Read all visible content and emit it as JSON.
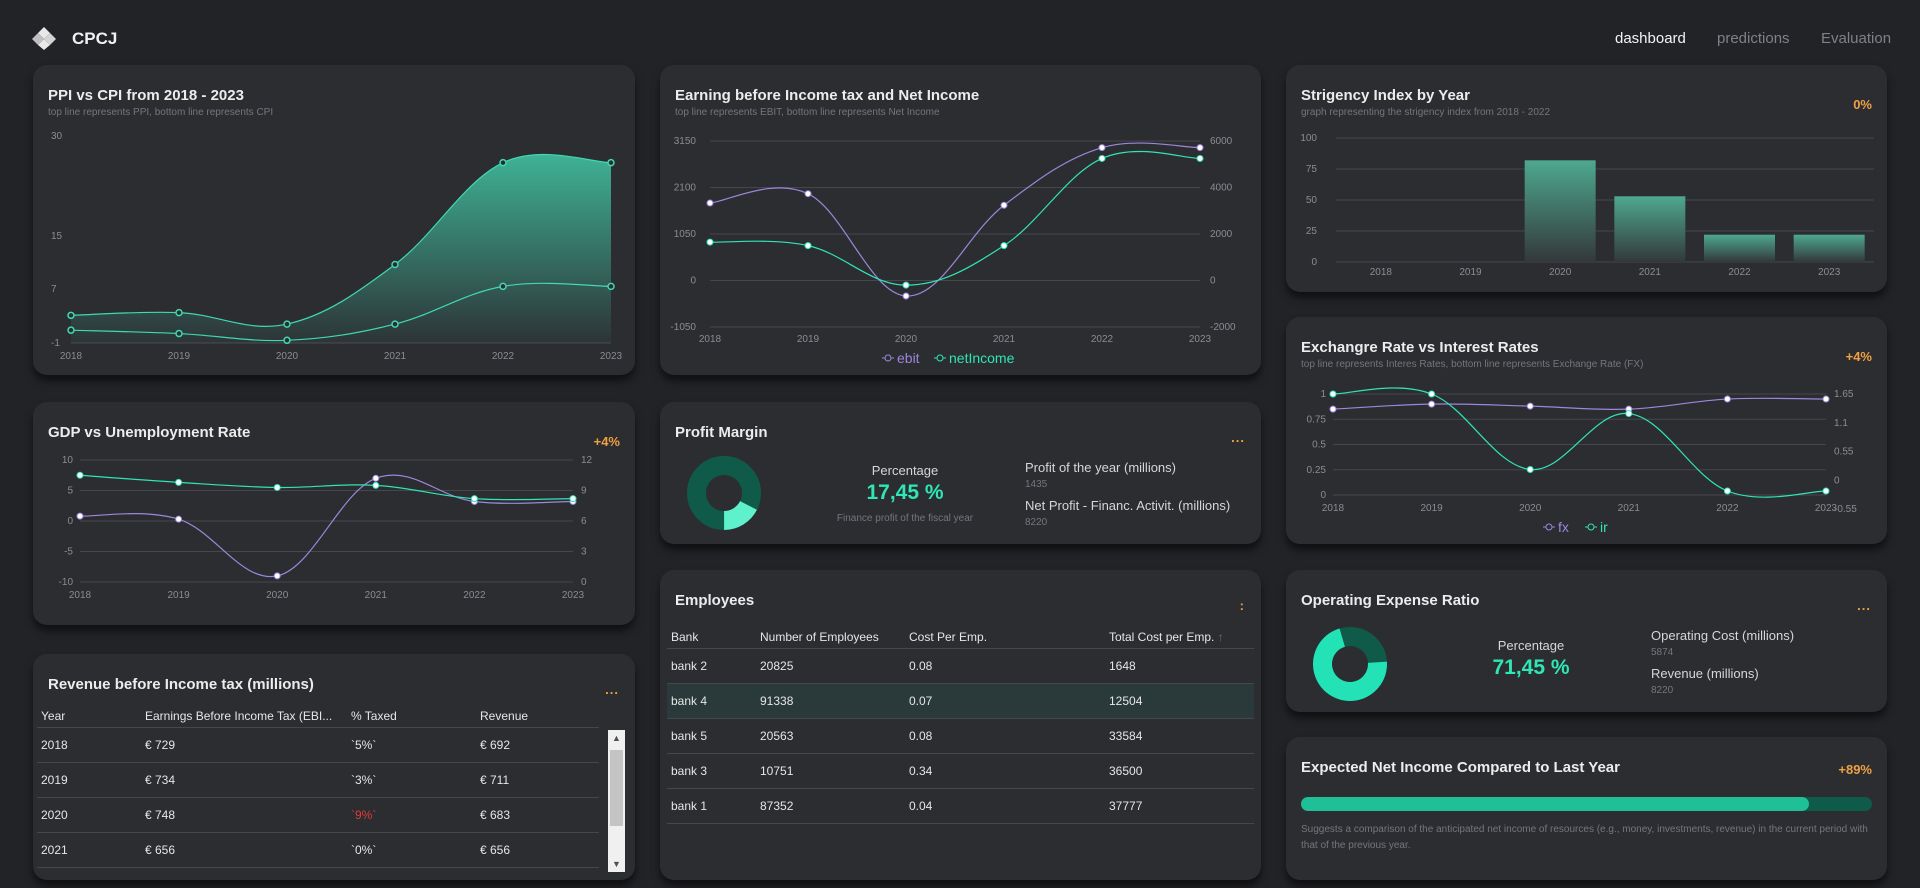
{
  "app": {
    "brand": "CPCJ"
  },
  "nav": {
    "items": [
      {
        "label": "dashboard",
        "active": true
      },
      {
        "label": "predictions",
        "active": false
      },
      {
        "label": "Evaluation",
        "active": false
      }
    ]
  },
  "colors": {
    "accent": "#2ee6b6",
    "teal": "#31c9a6",
    "purple": "#9d86dc",
    "orange": "#f0a143",
    "card": "#2c2d31",
    "background": "#222327"
  },
  "ppi_cpi": {
    "title": "PPI vs CPI from 2018 - 2023",
    "subtitle": "top line represents PPI, bottom line represents CPI",
    "chart_data": {
      "type": "area",
      "x": [
        "2018",
        "2019",
        "2020",
        "2021",
        "2022",
        "2023"
      ],
      "y_ticks": [
        "30",
        "15",
        "7",
        "-1"
      ],
      "series": [
        {
          "values": [
            3.1,
            3.5,
            1.8,
            10.7,
            26,
            26
          ]
        },
        {
          "values": [
            0.9,
            0.4,
            -0.6,
            1.8,
            7.4,
            7.4
          ]
        }
      ]
    }
  },
  "ebit": {
    "title": "Earning before Income tax and Net Income",
    "subtitle": "top line represents EBIT, bottom line represents Net Income",
    "chart_data": {
      "type": "line",
      "x": [
        "2018",
        "2019",
        "2020",
        "2021",
        "2022",
        "2023"
      ],
      "y_left_ticks": [
        "3150",
        "2100",
        "1050",
        "0",
        "-1050"
      ],
      "y_right_ticks": [
        "6000",
        "4000",
        "2000",
        "0",
        "-2000"
      ],
      "series": [
        {
          "name": "ebit",
          "values": [
            1750,
            1960,
            -350,
            1700,
            3000,
            3000
          ]
        },
        {
          "name": "netIncome",
          "values": [
            1650,
            1500,
            -200,
            1500,
            5250,
            5250
          ]
        }
      ]
    }
  },
  "stringency": {
    "title": "Strigency Index by Year",
    "subtitle": "graph representing the strigency index from 2018 - 2022",
    "badge": "0%",
    "chart_data": {
      "type": "bar",
      "categories": [
        "2018",
        "2019",
        "2020",
        "2021",
        "2022",
        "2023"
      ],
      "values": [
        0,
        0,
        82,
        53,
        22,
        22
      ],
      "y_ticks": [
        "100",
        "75",
        "50",
        "25",
        "0"
      ],
      "ylim": [
        0,
        100
      ]
    }
  },
  "gdp": {
    "title": "GDP vs Unemployment Rate",
    "badge": "+4%",
    "chart_data": {
      "type": "line",
      "x": [
        "2018",
        "2019",
        "2020",
        "2021",
        "2022",
        "2023"
      ],
      "y_left_ticks": [
        "10",
        "5",
        "0",
        "-5",
        "-10"
      ],
      "y_right_ticks": [
        "12",
        "9",
        "6",
        "3",
        "0"
      ],
      "series": [
        {
          "values": [
            0.8,
            0.3,
            -9,
            7,
            3.2,
            3.2
          ]
        },
        {
          "values": [
            10.5,
            9.8,
            9.3,
            9.5,
            8.2,
            8.2
          ]
        }
      ]
    }
  },
  "profit_margin": {
    "title": "Profit Margin",
    "more": "...",
    "percentage_label": "Percentage",
    "percentage_value": "17,45 %",
    "note": "Finance profit of the fiscal year",
    "fraction": 0.1745,
    "items": [
      {
        "label": "Profit of the year (millions)",
        "value": "1435"
      },
      {
        "label": "Net Profit - Financ. Activit. (millions)",
        "value": "8220"
      }
    ]
  },
  "exchange": {
    "title": "Exchangre Rate vs Interest Rates",
    "subtitle": "top line represents Interes Rates, bottom line represents Exchange Rate (FX)",
    "badge": "+4%",
    "chart_data": {
      "type": "line",
      "x": [
        "2018",
        "2019",
        "2020",
        "2021",
        "2022",
        "2023"
      ],
      "y_left_ticks": [
        "1",
        "0.75",
        "0.5",
        "0.25",
        "0"
      ],
      "y_right_ticks": [
        "1.65",
        "1.1",
        "0.55",
        "0",
        "-0.55"
      ],
      "series": [
        {
          "name": "fx",
          "values": [
            0.85,
            0.9,
            0.88,
            0.85,
            0.95,
            0.95
          ]
        },
        {
          "name": "ir",
          "values": [
            1.65,
            1.65,
            0.3,
            1.3,
            -0.4,
            -0.4
          ]
        }
      ]
    }
  },
  "employees": {
    "title": "Employees",
    "more": ":",
    "columns": [
      "Bank",
      "Number of Employees",
      "Cost Per Emp.",
      "Total Cost per Emp."
    ],
    "sort_icon": "↑",
    "rows": [
      [
        "bank 2",
        "20825",
        "0.08",
        "1648"
      ],
      [
        "bank 4",
        "91338",
        "0.07",
        "12504"
      ],
      [
        "bank 5",
        "20563",
        "0.08",
        "33584"
      ],
      [
        "bank 3",
        "10751",
        "0.34",
        "36500"
      ],
      [
        "bank 1",
        "87352",
        "0.04",
        "37777"
      ]
    ]
  },
  "revenue": {
    "title": "Revenue before Income tax (millions)",
    "more": "...",
    "columns": [
      "Year",
      "Earnings Before Income Tax (EBI...",
      "% Taxed",
      "Revenue"
    ],
    "rows": [
      [
        "2018",
        "€ 729",
        "`5%`",
        "€ 692"
      ],
      [
        "2019",
        "€ 734",
        "`3%`",
        "€ 711"
      ],
      [
        "2020",
        "€ 748",
        "`9%`",
        "€ 683"
      ],
      [
        "2021",
        "€ 656",
        "`0%`",
        "€ 656"
      ]
    ]
  },
  "opex": {
    "title": "Operating Expense Ratio",
    "more": "...",
    "percentage_label": "Percentage",
    "percentage_value": "71,45 %",
    "fraction": 0.7145,
    "items": [
      {
        "label": "Operating Cost (millions)",
        "value": "5874"
      },
      {
        "label": "Revenue (millions)",
        "value": "8220"
      }
    ]
  },
  "expected": {
    "title": "Expected Net Income Compared to Last Year",
    "badge": "+89%",
    "progress": 0.89,
    "description": "Suggests a comparison of the anticipated net income of resources (e.g., money, investments, revenue) in the current period with that of the previous year."
  }
}
